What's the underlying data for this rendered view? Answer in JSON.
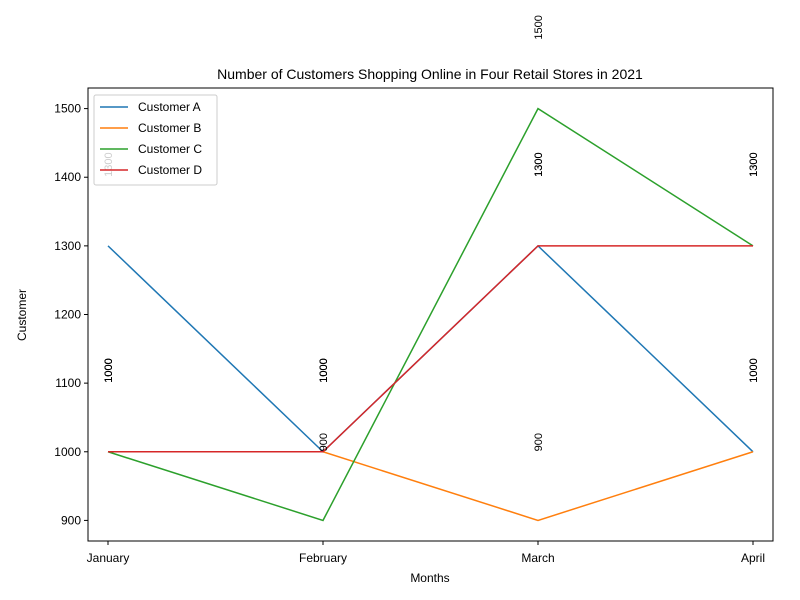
{
  "chart_data": {
    "type": "line",
    "title": "Number of Customers Shopping Online in Four Retail Stores in 2021",
    "x_label": "Months",
    "y_label": "Customer",
    "categories": [
      "January",
      "February",
      "March",
      "April"
    ],
    "series": [
      {
        "name": "Customer A",
        "color": "#1f77b4",
        "values": [
          1300,
          1000,
          1300,
          1000
        ]
      },
      {
        "name": "Customer B",
        "color": "#ff7f0e",
        "values": [
          1000,
          1000,
          900,
          1000
        ]
      },
      {
        "name": "Customer C",
        "color": "#2ca02c",
        "values": [
          1000,
          900,
          1500,
          1300
        ]
      },
      {
        "name": "Customer D",
        "color": "#d62728",
        "values": [
          1000,
          1000,
          1300,
          1300
        ]
      }
    ],
    "ylim": [
      870,
      1530
    ],
    "yticks": [
      900,
      1000,
      1100,
      1200,
      1300,
      1400,
      1500
    ],
    "legend": "upper-left",
    "data_labels": true
  }
}
